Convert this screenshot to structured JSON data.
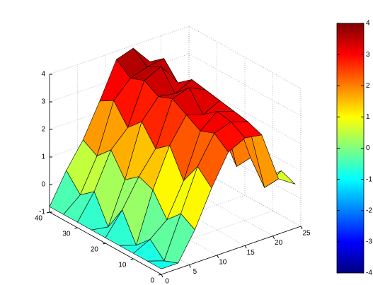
{
  "chart_data": {
    "type": "surface",
    "colormap": "jet",
    "grid": true,
    "x": [
      0,
      3,
      6,
      9,
      12,
      15,
      18,
      21,
      24
    ],
    "y": [
      0,
      5,
      10,
      15,
      20,
      25,
      30,
      35,
      40
    ],
    "z": [
      [
        -0.8,
        -0.8,
        0.2,
        1.5,
        2.6,
        2.9,
        2.8,
        1.0,
        0.6
      ],
      [
        -0.8,
        -1.0,
        0.5,
        2.0,
        3.0,
        3.2,
        3.0,
        0.4,
        0.8
      ],
      [
        -0.8,
        -0.5,
        0.0,
        1.2,
        2.8,
        3.3,
        3.1,
        1.2,
        0.3
      ],
      [
        -0.8,
        -1.0,
        0.8,
        2.2,
        3.1,
        2.9,
        3.2,
        0.6,
        0.9
      ],
      [
        -0.8,
        0.0,
        1.0,
        1.8,
        3.4,
        3.6,
        3.3,
        1.5,
        0.2
      ],
      [
        -0.8,
        -0.9,
        0.6,
        2.5,
        3.2,
        3.1,
        3.4,
        0.8,
        1.0
      ],
      [
        -0.8,
        0.1,
        1.4,
        2.0,
        3.5,
        3.8,
        3.0,
        1.1,
        0.4
      ],
      [
        -0.8,
        -0.3,
        0.9,
        2.7,
        3.3,
        3.5,
        3.6,
        1.6,
        0.7
      ],
      [
        -0.8,
        0.3,
        1.2,
        2.4,
        3.7,
        3.9,
        3.2,
        1.0,
        0.5
      ]
    ],
    "xlim": [
      0,
      25
    ],
    "xticks": [
      0,
      5,
      10,
      15,
      20,
      25
    ],
    "ylim": [
      0,
      40
    ],
    "yticks": [
      0,
      10,
      20,
      30,
      40
    ],
    "zlim": [
      -1,
      4
    ],
    "zticks": [
      -1,
      0,
      1,
      2,
      3,
      4
    ],
    "colorbar": {
      "clim": [
        -4,
        4
      ],
      "ticks": [
        -4,
        -3,
        -2,
        -1,
        0,
        1,
        2,
        3,
        4
      ]
    }
  }
}
